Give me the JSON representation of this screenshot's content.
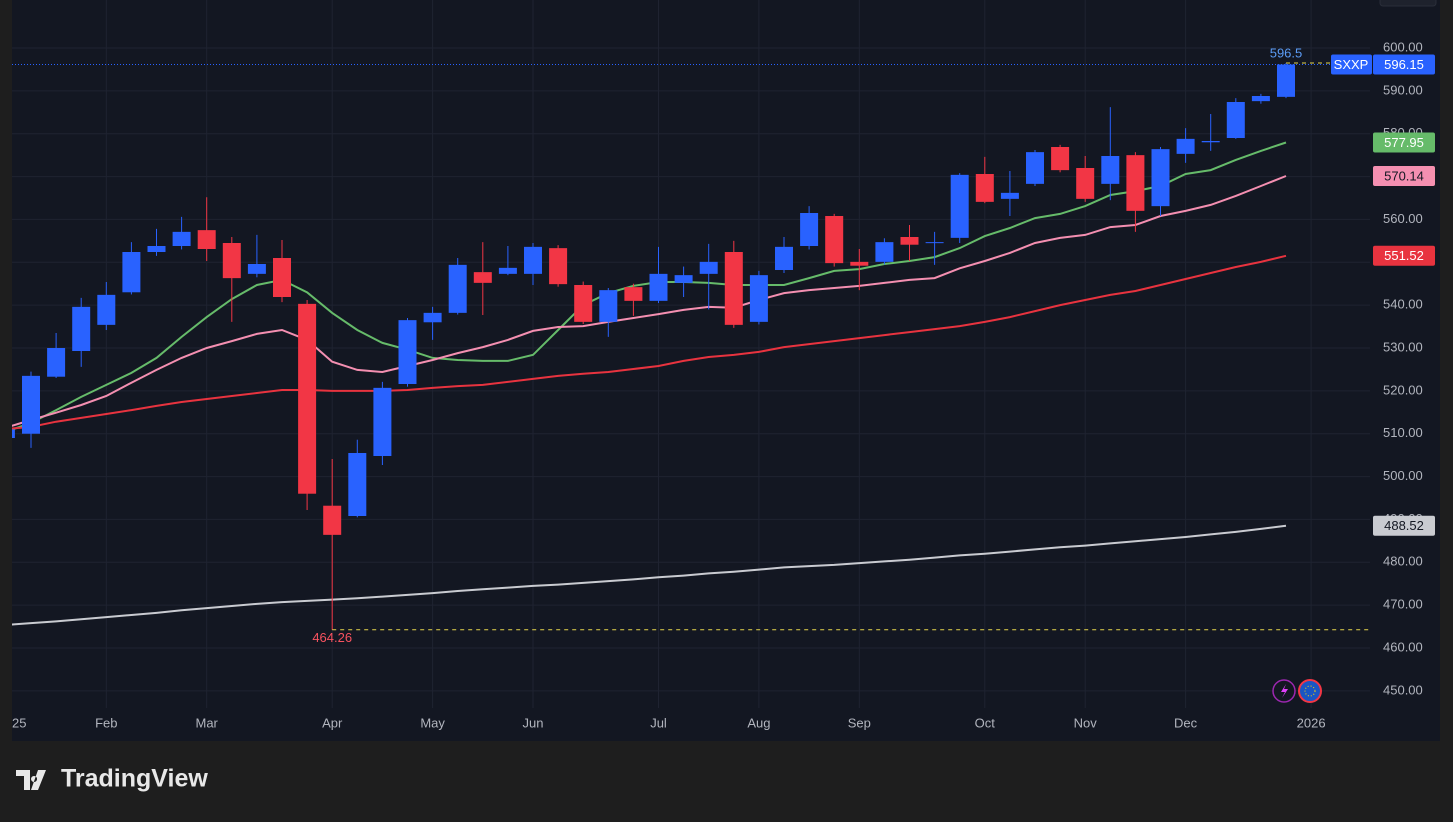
{
  "chart_data": {
    "type": "candlestick",
    "symbol": "SXXP",
    "categories": [
      "25",
      null,
      null,
      null,
      "Feb",
      null,
      null,
      null,
      "Mar",
      null,
      null,
      null,
      null,
      "Apr",
      null,
      null,
      null,
      "May",
      null,
      null,
      null,
      "Jun",
      null,
      null,
      null,
      null,
      "Jul",
      null,
      null,
      null,
      "Aug",
      null,
      null,
      null,
      "Sep",
      null,
      null,
      null,
      null,
      "Oct",
      null,
      null,
      null,
      "Nov",
      null,
      null,
      null,
      "Dec",
      null,
      null,
      null,
      null,
      "2026"
    ],
    "open": [
      509,
      510,
      523.3,
      529.3,
      535.4,
      543,
      552.4,
      553.8,
      557.5,
      554.5,
      547.3,
      551,
      540.3,
      493.2,
      490.8,
      504.8,
      521.6,
      536,
      538.2,
      547.7,
      547.3,
      547.3,
      553.3,
      544.7,
      536.1,
      544.2,
      541,
      545.2,
      547.3,
      552.4,
      536.1,
      548.2,
      553.8,
      560.8,
      550.1,
      550.1,
      555.9,
      554.5,
      555.7,
      570.6,
      564.8,
      568.3,
      576.9,
      572,
      568.3,
      575,
      563.1,
      575.3,
      578,
      579,
      587.6,
      588.6,
      null
    ],
    "high": [
      512,
      524.5,
      533.5,
      541.7,
      545.4,
      554.7,
      557.8,
      560.6,
      565.18,
      555.9,
      556.4,
      555.2,
      541.2,
      504.1,
      508.6,
      522.1,
      537,
      539.6,
      551,
      554.7,
      553.8,
      554.5,
      554,
      545.5,
      544,
      545,
      553.6,
      549,
      554.3,
      555,
      548,
      555.9,
      563.1,
      561.3,
      553.1,
      555.6,
      558.7,
      557.1,
      570.8,
      574.6,
      571.3,
      576.2,
      577.4,
      574.8,
      586.2,
      575.7,
      576.9,
      581.3,
      584.6,
      588.3,
      589.3,
      596.5,
      null
    ],
    "low": [
      508,
      506.7,
      523,
      525.6,
      534.2,
      542.5,
      551.5,
      553,
      550.3,
      536.1,
      546.5,
      540.7,
      492.2,
      464.26,
      490.5,
      502.7,
      521,
      531.9,
      537.8,
      537.7,
      547,
      544.7,
      544.3,
      535.6,
      532.6,
      537.5,
      540.5,
      541.9,
      539,
      534.7,
      535.5,
      547.5,
      553,
      549,
      543.5,
      549.5,
      550.3,
      549.4,
      554.5,
      563.8,
      560.8,
      567.8,
      571,
      564.1,
      564.5,
      557.1,
      560.8,
      573.2,
      576,
      578.8,
      587,
      588.3,
      null
    ],
    "close": [
      511,
      523.5,
      530,
      539.6,
      542.4,
      552.4,
      553.8,
      557.1,
      553.1,
      546.3,
      549.6,
      541.9,
      496,
      486.4,
      505.5,
      520.7,
      536.5,
      538.2,
      549.4,
      545.2,
      548.7,
      553.6,
      544.9,
      536.1,
      543.5,
      541,
      547.3,
      547,
      550.1,
      535.4,
      547,
      553.6,
      561.5,
      549.8,
      549.2,
      554.7,
      554.1,
      554.7,
      570.4,
      564.1,
      566.2,
      575.7,
      571.5,
      564.8,
      574.8,
      562,
      576.4,
      578.8,
      578.3,
      587.4,
      588.8,
      596.15,
      null
    ],
    "up_color": "#2962ff",
    "down_color": "#f23645",
    "series": [
      {
        "color": "#66bb6a",
        "values": [
          510.5,
          512.5,
          515.5,
          518.6,
          521.4,
          524.2,
          527.7,
          532.6,
          537.2,
          541.4,
          544.7,
          545.9,
          543,
          538.2,
          534.2,
          531.2,
          529.6,
          527.7,
          527.2,
          527,
          527,
          528.4,
          534.2,
          540,
          542.8,
          544.5,
          545.4,
          545.4,
          545.2,
          544.7,
          544.7,
          544.7,
          546.3,
          548,
          548.4,
          549.6,
          550.3,
          551.2,
          553.3,
          556.1,
          558,
          560.3,
          561.3,
          563.1,
          565.7,
          566.6,
          567.8,
          570.6,
          571.5,
          573.9,
          576,
          577.95,
          null
        ]
      },
      {
        "color": "#f48fb1",
        "values": [
          511.4,
          513.2,
          514.9,
          516.7,
          518.8,
          521.9,
          524.9,
          527.7,
          530,
          531.6,
          533.3,
          534.2,
          531.9,
          526.8,
          524.9,
          524.4,
          525.8,
          527.2,
          528.8,
          530.2,
          531.9,
          534,
          534.9,
          535.1,
          536.1,
          537,
          537.9,
          538.9,
          539.6,
          539.4,
          541.2,
          542.8,
          543.5,
          544,
          544.5,
          545.2,
          545.9,
          546.3,
          548.6,
          550.3,
          552.2,
          554.5,
          555.7,
          556.4,
          558.2,
          558.7,
          560.8,
          562,
          563.4,
          565.5,
          567.8,
          570.14,
          null
        ]
      },
      {
        "color": "#e8333f",
        "values": [
          511.1,
          511.6,
          512.8,
          513.7,
          514.6,
          515.5,
          516.5,
          517.4,
          518.1,
          518.8,
          519.5,
          520.2,
          520.2,
          520,
          520,
          520,
          520.2,
          520.7,
          521.1,
          521.4,
          522.1,
          522.8,
          523.5,
          524,
          524.4,
          525.1,
          525.8,
          527,
          527.9,
          528.4,
          529.1,
          530.2,
          530.9,
          531.6,
          532.3,
          533,
          533.7,
          534.4,
          535.1,
          536.1,
          537.2,
          538.6,
          540,
          541.2,
          542.4,
          543.3,
          544.7,
          546.1,
          547.5,
          548.9,
          550.1,
          551.52,
          null
        ]
      },
      {
        "color": "#c9cbd1",
        "values": [
          465.4,
          465.8,
          466.2,
          466.7,
          467.2,
          467.7,
          468.2,
          468.8,
          469.3,
          469.8,
          470.3,
          470.7,
          471,
          471.3,
          471.6,
          472,
          472.4,
          472.8,
          473.3,
          473.7,
          474.1,
          474.5,
          474.8,
          475.2,
          475.6,
          476,
          476.5,
          476.9,
          477.4,
          477.8,
          478.3,
          478.8,
          479.1,
          479.4,
          479.8,
          480.2,
          480.6,
          481.1,
          481.6,
          482,
          482.5,
          483,
          483.5,
          483.9,
          484.4,
          484.9,
          485.4,
          485.9,
          486.5,
          487.1,
          487.8,
          488.52,
          null
        ]
      }
    ],
    "ylim": [
      446,
      611.2
    ],
    "yticks": [
      {
        "value": 450,
        "label": "450.00"
      },
      {
        "value": 460,
        "label": "460.00"
      },
      {
        "value": 470,
        "label": "470.00"
      },
      {
        "value": 480,
        "label": "480.00"
      },
      {
        "value": 490,
        "label": "490.00"
      },
      {
        "value": 500,
        "label": "500.00"
      },
      {
        "value": 510,
        "label": "510.00"
      },
      {
        "value": 520,
        "label": "520.00"
      },
      {
        "value": 530,
        "label": "530.00"
      },
      {
        "value": 540,
        "label": "540.00"
      },
      {
        "value": 550,
        "label": "550.00"
      },
      {
        "value": 560,
        "label": "560.00"
      },
      {
        "value": 570,
        "label": "570.00"
      },
      {
        "value": 580,
        "label": "580.00"
      },
      {
        "value": 590,
        "label": "590.00"
      },
      {
        "value": 600,
        "label": "600.00"
      }
    ],
    "grid": true
  },
  "footer": {
    "brand": "TradingView"
  }
}
